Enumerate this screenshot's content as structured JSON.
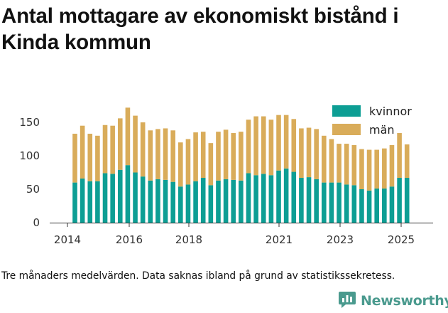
{
  "title": "Antal mottagare av ekonomiskt bistånd i Kinda kommun",
  "caption": "Tre månaders medelvärden. Data saknas ibland på grund av statistikssekretess.",
  "brand": {
    "name": "Newsworthy",
    "icon": "newsworthy-logo-icon"
  },
  "colors": {
    "kvinnor": "#0d9e94",
    "man": "#d9ac5a",
    "axis": "#333333",
    "grid": "#dddddd"
  },
  "chart_data": {
    "type": "bar",
    "stacked": true,
    "x_ticks": [
      "2014",
      "2016",
      "2018",
      "2021",
      "2023",
      "2025"
    ],
    "y_ticks": [
      "0",
      "50",
      "100",
      "150"
    ],
    "ylim": [
      0,
      175
    ],
    "grid": false,
    "legend_position": "top-right",
    "legend": [
      "kvinnor",
      "män"
    ],
    "series": [
      {
        "name": "kvinnor",
        "values": [
          60,
          66,
          62,
          62,
          74,
          73,
          79,
          86,
          75,
          69,
          63,
          65,
          64,
          61,
          54,
          57,
          62,
          67,
          56,
          63,
          65,
          64,
          63,
          74,
          71,
          73,
          71,
          78,
          81,
          76,
          67,
          68,
          65,
          60,
          60,
          60,
          57,
          56,
          50,
          48,
          51,
          51,
          54,
          67,
          67
        ]
      },
      {
        "name": "män",
        "values": [
          73,
          79,
          71,
          68,
          72,
          72,
          77,
          86,
          85,
          81,
          75,
          75,
          77,
          77,
          66,
          68,
          73,
          69,
          63,
          73,
          74,
          70,
          73,
          80,
          88,
          86,
          83,
          83,
          80,
          79,
          74,
          74,
          75,
          70,
          65,
          58,
          61,
          60,
          60,
          61,
          58,
          60,
          62,
          67,
          50
        ]
      }
    ]
  }
}
